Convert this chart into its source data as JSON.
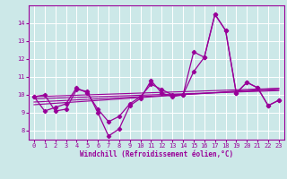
{
  "x": [
    0,
    1,
    2,
    3,
    4,
    5,
    6,
    7,
    8,
    9,
    10,
    11,
    12,
    13,
    14,
    15,
    16,
    17,
    18,
    19,
    20,
    21,
    22,
    23
  ],
  "line1": [
    9.9,
    10.0,
    9.1,
    9.2,
    10.3,
    10.2,
    9.0,
    7.7,
    8.1,
    9.4,
    9.8,
    10.8,
    10.1,
    9.9,
    10.0,
    12.4,
    12.1,
    14.5,
    13.6,
    10.1,
    10.7,
    10.4,
    9.4,
    9.7
  ],
  "line2": [
    9.9,
    9.1,
    9.3,
    9.5,
    10.4,
    10.1,
    9.2,
    8.5,
    8.8,
    9.5,
    9.9,
    10.6,
    10.3,
    10.0,
    10.0,
    11.3,
    12.1,
    14.5,
    13.6,
    10.1,
    10.7,
    10.4,
    9.4,
    9.7
  ],
  "trend1": [
    9.9,
    9.92,
    9.94,
    9.96,
    9.98,
    10.0,
    10.02,
    10.04,
    10.06,
    10.08,
    10.1,
    10.12,
    10.14,
    10.16,
    10.18,
    10.2,
    10.22,
    10.24,
    10.26,
    10.28,
    10.3,
    10.32,
    10.34,
    10.36
  ],
  "trend2": [
    9.78,
    9.8,
    9.82,
    9.84,
    9.86,
    9.88,
    9.9,
    9.92,
    9.94,
    9.96,
    9.98,
    10.0,
    10.02,
    10.04,
    10.06,
    10.08,
    10.1,
    10.12,
    10.14,
    10.16,
    10.18,
    10.2,
    10.22,
    10.24
  ],
  "trend3": [
    9.6,
    9.63,
    9.66,
    9.69,
    9.72,
    9.75,
    9.78,
    9.81,
    9.84,
    9.87,
    9.9,
    9.93,
    9.96,
    9.99,
    10.02,
    10.05,
    10.08,
    10.11,
    10.14,
    10.17,
    10.2,
    10.23,
    10.26,
    10.29
  ],
  "trend4": [
    9.45,
    9.49,
    9.53,
    9.57,
    9.61,
    9.65,
    9.69,
    9.73,
    9.77,
    9.81,
    9.85,
    9.89,
    9.93,
    9.97,
    10.01,
    10.05,
    10.09,
    10.13,
    10.17,
    10.21,
    10.25,
    10.29,
    10.33,
    10.37
  ],
  "line_color": "#990099",
  "bg_color": "#cce8e8",
  "grid_color": "#aacccc",
  "xlabel": "Windchill (Refroidissement éolien,°C)",
  "ylim": [
    7.5,
    15.0
  ],
  "xlim": [
    -0.5,
    23.5
  ],
  "yticks": [
    8,
    9,
    10,
    11,
    12,
    13,
    14
  ],
  "xticks": [
    0,
    1,
    2,
    3,
    4,
    5,
    6,
    7,
    8,
    9,
    10,
    11,
    12,
    13,
    14,
    15,
    16,
    17,
    18,
    19,
    20,
    21,
    22,
    23
  ]
}
